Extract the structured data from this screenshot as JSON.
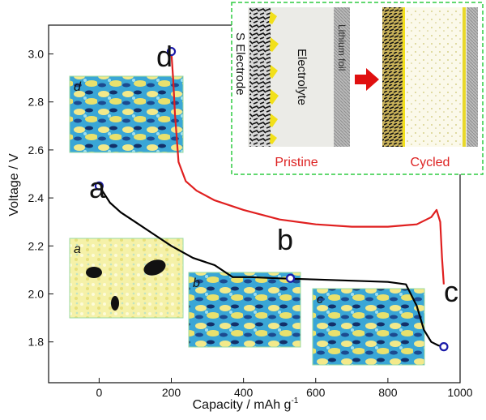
{
  "chart_data": {
    "type": "line",
    "xlabel_main": "Capacity / mAh g",
    "xlabel_sup": "-1",
    "ylabel": "Voltage / V",
    "xlim": [
      -140,
      1000
    ],
    "ylim": [
      1.63,
      3.12
    ],
    "x_ticks": [
      0,
      200,
      400,
      600,
      800,
      1000
    ],
    "y_ticks": [
      1.8,
      2.0,
      2.2,
      2.4,
      2.6,
      2.8,
      3.0
    ],
    "grid": false,
    "series": [
      {
        "color": "#000000",
        "x": [
          0,
          30,
          60,
          100,
          150,
          200,
          260,
          320,
          370,
          420,
          500,
          600,
          700,
          800,
          850,
          880,
          900,
          920,
          940,
          955
        ],
        "y": [
          2.45,
          2.38,
          2.34,
          2.3,
          2.25,
          2.2,
          2.15,
          2.12,
          2.07,
          2.07,
          2.065,
          2.06,
          2.055,
          2.05,
          2.04,
          1.95,
          1.85,
          1.8,
          1.785,
          1.78
        ]
      },
      {
        "color": "#e02020",
        "x": [
          200,
          205,
          210,
          220,
          240,
          270,
          320,
          400,
          500,
          600,
          700,
          800,
          880,
          920,
          935,
          945,
          950,
          955
        ],
        "y": [
          3.01,
          2.9,
          2.75,
          2.55,
          2.47,
          2.43,
          2.39,
          2.35,
          2.31,
          2.29,
          2.28,
          2.28,
          2.29,
          2.32,
          2.35,
          2.3,
          2.15,
          2.04
        ]
      }
    ],
    "points": [
      {
        "label": "a",
        "x": 0,
        "y": 2.45
      },
      {
        "label": "b",
        "x": 530,
        "y": 2.065
      },
      {
        "label": "c",
        "x": 955,
        "y": 1.78
      },
      {
        "label": "d",
        "x": 200,
        "y": 3.01
      }
    ],
    "marker_color": "#1a1aa8",
    "insets": [
      {
        "label": "d",
        "tone": "blue"
      },
      {
        "label": "a",
        "tone": "yellow"
      },
      {
        "label": "b",
        "tone": "blue"
      },
      {
        "label": "c",
        "tone": "blue"
      }
    ],
    "schematic": {
      "electrode_label": "S Electrode",
      "electrolyte_label": "Electrolyte",
      "lithium_label": "Lithium foil",
      "pristine_label": "Pristine",
      "cycled_label": "Cycled",
      "border_color": "#2ecc40",
      "caption_color": "#d22"
    }
  }
}
